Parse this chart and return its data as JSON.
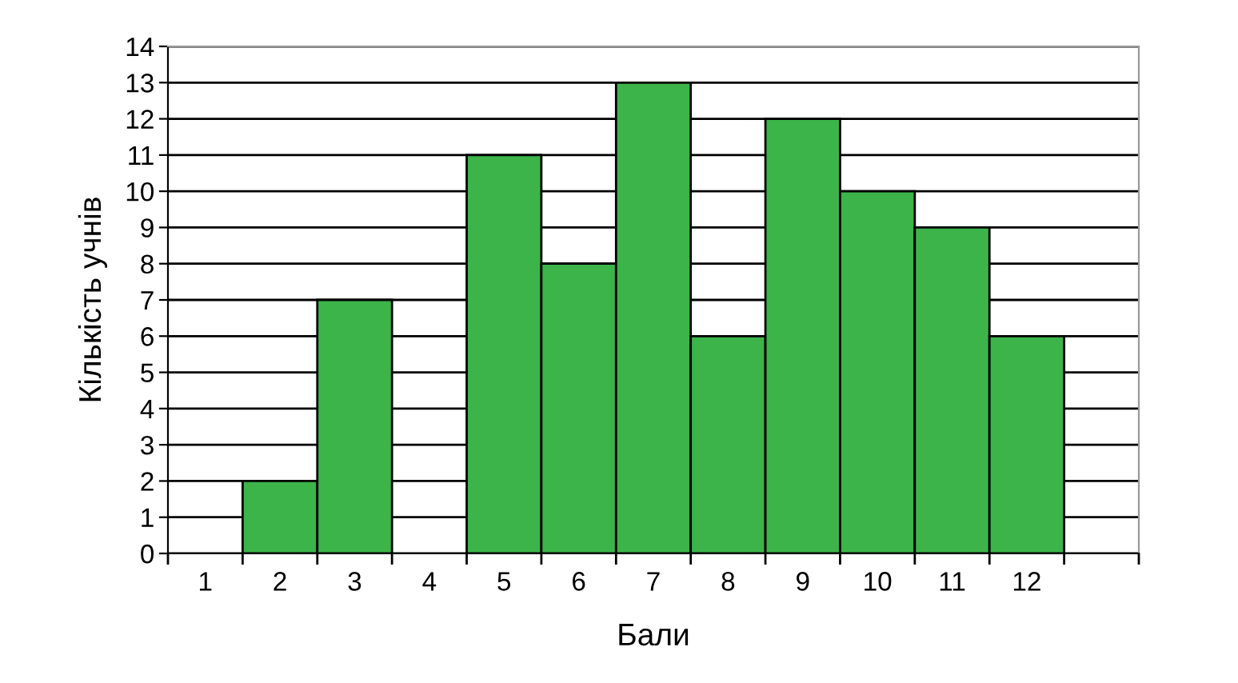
{
  "chart_data": {
    "type": "bar",
    "xlabel": "Бали",
    "ylabel": "Кількість учнів",
    "categories": [
      "1",
      "2",
      "3",
      "4",
      "5",
      "6",
      "7",
      "8",
      "9",
      "10",
      "11",
      "12",
      null
    ],
    "values": [
      0,
      2,
      7,
      0,
      11,
      8,
      13,
      6,
      12,
      10,
      9,
      6,
      null
    ],
    "color": "#3cb44a",
    "ylim": [
      0,
      14
    ],
    "yticks": [
      0,
      1,
      2,
      3,
      4,
      5,
      6,
      7,
      8,
      9,
      10,
      11,
      12,
      13,
      14
    ],
    "grid": "y",
    "legend": false
  }
}
